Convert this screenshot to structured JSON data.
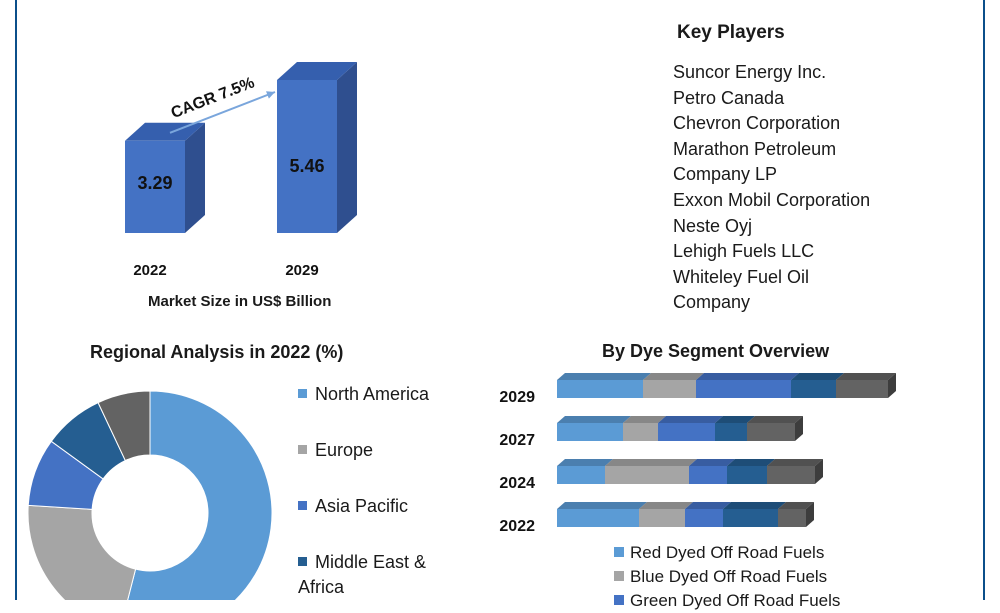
{
  "market_size": {
    "cagr_label": "CAGR 7.5%",
    "caption": "Market Size in US$ Billion"
  },
  "key_players": {
    "title": "Key Players",
    "items": [
      "Suncor Energy Inc.",
      "Petro Canada",
      "Chevron Corporation",
      "Marathon Petroleum",
      "Company LP",
      "Exxon Mobil Corporation",
      "Neste Oyj",
      "Lehigh Fuels LLC",
      "Whiteley Fuel Oil",
      "Company"
    ]
  },
  "regional": {
    "title": "Regional Analysis in 2022 (%)"
  },
  "dye_segment": {
    "title": "By Dye Segment Overview"
  },
  "colors": {
    "bar_front": "#4472c4",
    "bar_side": "#2f4f8f",
    "bar_top": "#355fae",
    "arrow": "#7aa6dc",
    "rule": "#0b4f8a",
    "seg_red": "#5b9bd5",
    "seg_blue": "#a5a5a5",
    "seg_green": "#4472c4",
    "seg_4": "#255e91",
    "seg_5": "#636363"
  },
  "chart_data": [
    {
      "type": "bar",
      "categories": [
        "2022",
        "2029"
      ],
      "values": [
        3.29,
        5.46
      ],
      "title": "",
      "xlabel": "Market Size in US$ Billion",
      "ylabel": "",
      "annotation": "CAGR 7.5%"
    },
    {
      "type": "pie",
      "title": "Regional Analysis in 2022 (%)",
      "style": "donut",
      "labels": [
        "North America",
        "Europe",
        "Asia Pacific",
        "Middle East & Africa",
        ""
      ],
      "values": [
        54,
        22,
        9,
        8,
        7
      ],
      "colors": [
        "#5b9bd5",
        "#a5a5a5",
        "#4472c4",
        "#255e91",
        "#636363"
      ],
      "legend": "right"
    },
    {
      "type": "bar",
      "orientation": "horizontal",
      "stacked": true,
      "title": "By Dye Segment Overview",
      "categories": [
        "2029",
        "2027",
        "2024",
        "2022"
      ],
      "series": [
        {
          "name": "Red Dyed Off Road Fuels",
          "values": [
            86,
            66,
            48,
            82
          ],
          "color": "#5b9bd5"
        },
        {
          "name": "Blue Dyed Off Road Fuels",
          "values": [
            53,
            35,
            84,
            46
          ],
          "color": "#a5a5a5"
        },
        {
          "name": "Green Dyed Off Road Fuels",
          "values": [
            95,
            57,
            38,
            38
          ],
          "color": "#4472c4"
        },
        {
          "name": "",
          "values": [
            45,
            32,
            40,
            55
          ],
          "color": "#255e91"
        },
        {
          "name": "",
          "values": [
            52,
            48,
            48,
            28
          ],
          "color": "#636363"
        }
      ],
      "legend": "bottom"
    }
  ]
}
